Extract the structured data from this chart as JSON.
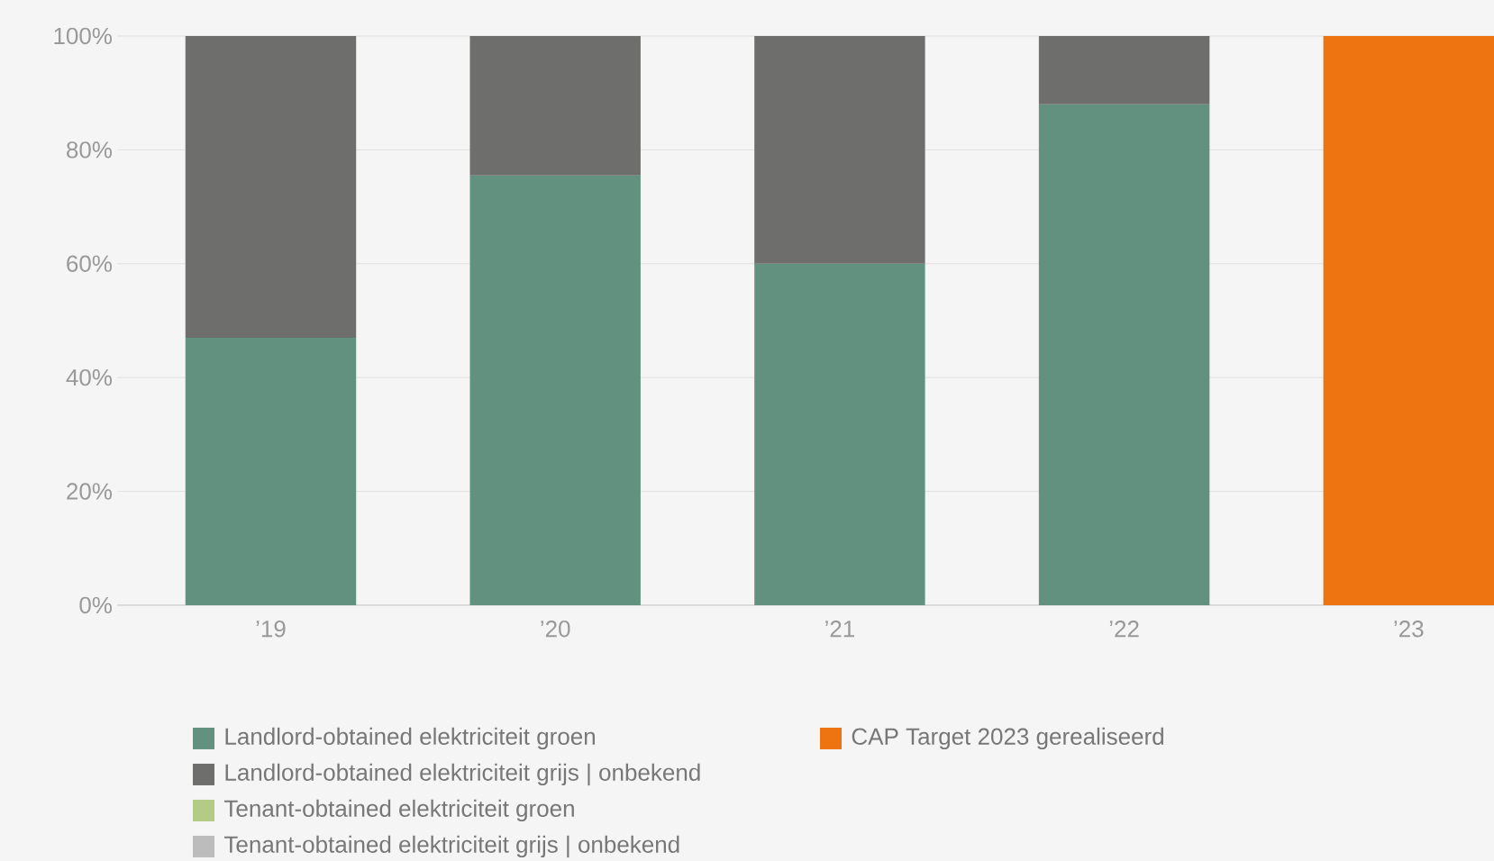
{
  "chart_data": {
    "type": "bar",
    "stacked": true,
    "categories": [
      "’19",
      "’20",
      "’21",
      "’22",
      "’23"
    ],
    "series": [
      {
        "name": "Landlord-obtained elektriciteit groen",
        "color": "#62927f",
        "values": [
          47,
          75.5,
          60,
          88,
          null
        ]
      },
      {
        "name": "Landlord-obtained elektriciteit grijs | onbekend",
        "color": "#6e6e6c",
        "values": [
          53,
          24.5,
          40,
          12,
          null
        ]
      },
      {
        "name": "Tenant-obtained elektriciteit groen",
        "color": "#b3cb84",
        "values": [
          null,
          null,
          null,
          null,
          null
        ]
      },
      {
        "name": "Tenant-obtained elektriciteit grijs | onbekend",
        "color": "#bcbcbc",
        "values": [
          null,
          null,
          null,
          null,
          null
        ]
      },
      {
        "name": "CAP Target 2023 gerealiseerd",
        "color": "#ee7411",
        "values": [
          null,
          null,
          null,
          null,
          100
        ]
      }
    ],
    "ylim": [
      0,
      100
    ],
    "yticks": [
      {
        "value": 0,
        "label": "0%"
      },
      {
        "value": 20,
        "label": "20%"
      },
      {
        "value": 40,
        "label": "40%"
      },
      {
        "value": 60,
        "label": "60%"
      },
      {
        "value": 80,
        "label": "80%"
      },
      {
        "value": 100,
        "label": "100%"
      }
    ],
    "grid": "y",
    "legend": "bottom"
  }
}
